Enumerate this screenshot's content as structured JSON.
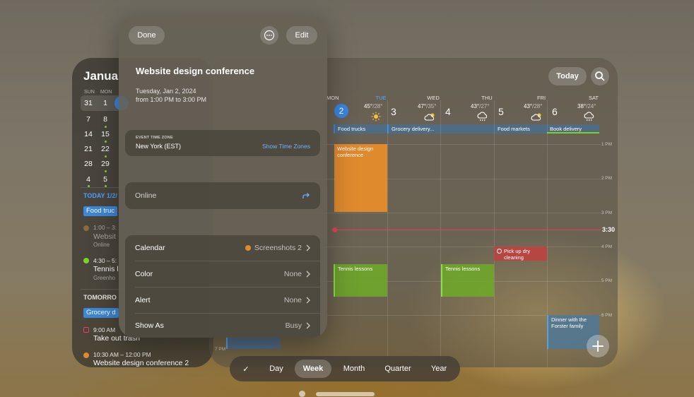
{
  "colors": {
    "accent_blue": "#3a84e0",
    "event_orange": "#e08a2e",
    "event_green": "#6eaa28",
    "now_red": "#e3435c"
  },
  "sidebar": {
    "month": "Janua",
    "dow": [
      "SUN",
      "MON"
    ],
    "weeks": [
      [
        "31",
        "1"
      ],
      [
        "7",
        "8"
      ],
      [
        "14",
        "15"
      ],
      [
        "21",
        "22"
      ],
      [
        "28",
        "29"
      ],
      [
        "4",
        "5"
      ]
    ],
    "today_header": "TODAY 1/2/",
    "today_chip": "Food truc",
    "events_today": [
      {
        "time": "1:00 – 3:",
        "title": "Websit",
        "sub": "Online"
      },
      {
        "time": "4:30 – 5:",
        "title": "Tennis l",
        "sub": "Greenho"
      }
    ],
    "tomorrow_header": "TOMORRO",
    "tomorrow_chip": "Grocery d",
    "events_tomorrow": [
      {
        "time": "9:00 AM",
        "title": "Take out trash"
      },
      {
        "time": "10:30 AM – 12:00 PM",
        "title": "Website design conference 2"
      }
    ]
  },
  "main": {
    "today_button": "Today",
    "search_icon": "magnifier-icon",
    "days": [
      {
        "dow": "MON",
        "num": ""
      },
      {
        "dow": "TUE",
        "num": "2",
        "hi": "45°",
        "lo": "/28°",
        "icon": "sun-icon"
      },
      {
        "dow": "WED",
        "num": "3",
        "hi": "47°",
        "lo": "/35°",
        "icon": "cloud-sun-icon"
      },
      {
        "dow": "THU",
        "num": "4",
        "hi": "43°",
        "lo": "/27°",
        "icon": "cloud-rain-icon"
      },
      {
        "dow": "FRI",
        "num": "5",
        "hi": "43°",
        "lo": "/28°",
        "icon": "cloud-sun-icon"
      },
      {
        "dow": "SAT",
        "num": "6",
        "hi": "38°",
        "lo": "/24°",
        "icon": "cloud-rain-icon"
      }
    ],
    "all_day": [
      "Food trucks",
      "Grocery delivery...",
      "Food markets",
      "Book delivery"
    ],
    "hours": [
      "1 PM",
      "2 PM",
      "3 PM",
      "4 PM",
      "5 PM",
      "6 PM",
      "7 PM"
    ],
    "now_label": "3:30",
    "events": {
      "conference": "Website design conference",
      "tennis_tue": "Tennis lessons",
      "tennis_thu": "Tennis lessons",
      "dry_cleaning": "Pick up dry cleaning",
      "dinner": "Dinner with the Forster family"
    }
  },
  "viewbar": {
    "check": "✓",
    "items": [
      "Day",
      "Week",
      "Month",
      "Quarter",
      "Year"
    ],
    "active": "Week"
  },
  "popover": {
    "done": "Done",
    "edit": "Edit",
    "title": "Website design conference",
    "date": "Tuesday, Jan 2, 2024",
    "time_range": "from 1:00 PM to 3:00 PM",
    "tz_label": "EVENT TIME ZONE",
    "tz_value": "New York (EST)",
    "tz_link": "Show Time Zones",
    "location": "Online",
    "rows": [
      {
        "label": "Calendar",
        "value": "Screenshots 2"
      },
      {
        "label": "Color",
        "value": "None"
      },
      {
        "label": "Alert",
        "value": "None"
      },
      {
        "label": "Show As",
        "value": "Busy"
      }
    ]
  }
}
